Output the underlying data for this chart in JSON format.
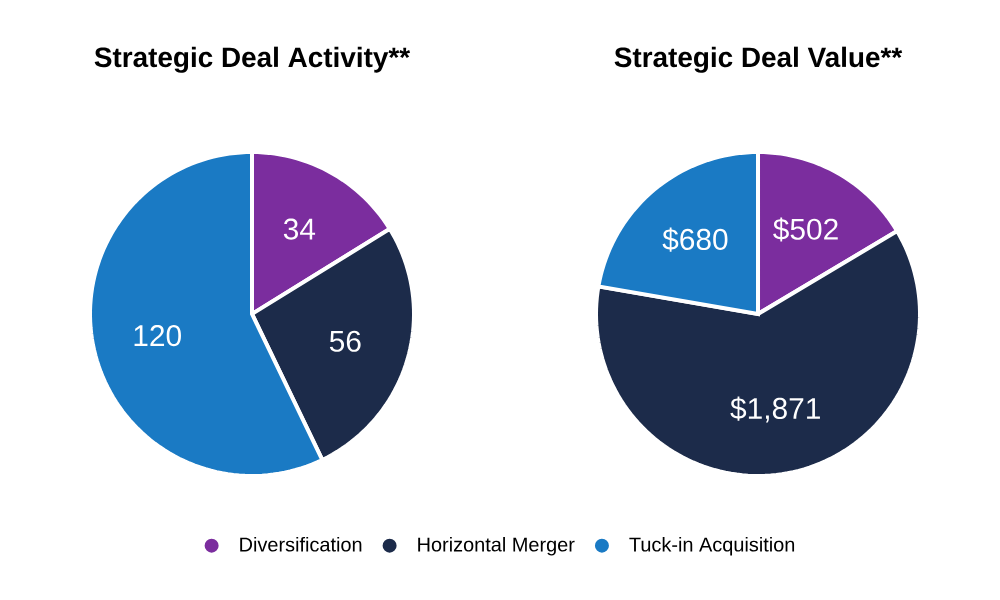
{
  "chart_data": [
    {
      "type": "pie",
      "title": "Strategic Deal Activity**",
      "categories": [
        "Diversification",
        "Horizontal Merger",
        "Tuck-in Acquisition"
      ],
      "values": [
        34,
        56,
        120
      ],
      "colors": [
        "#7b2d9e",
        "#1c2b4a",
        "#1a7ac4"
      ],
      "value_labels": [
        "34",
        "56",
        "120"
      ],
      "legend": "bottom"
    },
    {
      "type": "pie",
      "title": "Strategic Deal Value**",
      "values": [
        502,
        1871,
        680
      ],
      "colors": [
        "#7b2d9e",
        "#1c2b4a",
        "#1a7ac4"
      ],
      "value_labels": [
        "$502",
        "$1,871",
        "$680"
      ]
    }
  ]
}
